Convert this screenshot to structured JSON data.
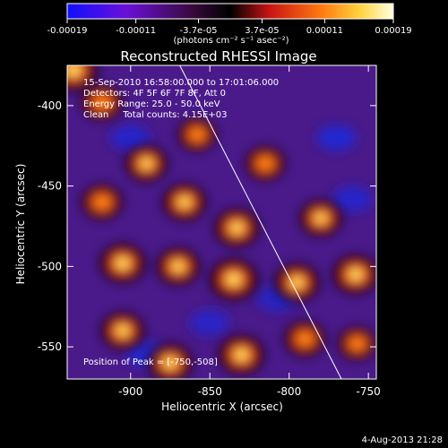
{
  "colorbar": {
    "tick_labels": [
      "-0.00019",
      "-0.00011",
      "-3.7e-05",
      "3.7e-05",
      "0.00011",
      "0.00019"
    ],
    "tick_values": [
      -0.00019,
      -0.00011,
      -3.7e-05,
      3.7e-05,
      0.00011,
      0.00019
    ],
    "range": [
      -0.00019,
      0.00019
    ],
    "unit_label": "(photons cm⁻² s⁻¹ asec⁻²)",
    "colormap": "violet-black-red-yellow-white"
  },
  "image": {
    "title": "Reconstructed RHESSI Image",
    "info_lines": [
      "15-Sep-2010 16:58:00.000 to 17:01:06.000",
      "Detectors: 4F 5F 6F 7F 8F, Att 0",
      "Energy Range: 25.0 - 50.0 keV",
      "Clean     Total counts: 4.15E+03"
    ],
    "peak_text": "Position of Peak = [-750,-508]",
    "footer_date": "4-Aug-2013 21:28"
  },
  "chart_data": {
    "type": "heatmap",
    "title": "Reconstructed RHESSI Image",
    "xlabel": "Heliocentric X (arcsec)",
    "ylabel": "Heliocentric Y (arcsec)",
    "xlim": [
      -940,
      -745
    ],
    "ylim": [
      -570,
      -375
    ],
    "x_ticks": [
      -900,
      -850,
      -800,
      -750
    ],
    "x_tick_labels": [
      "-900",
      "-850",
      "-800",
      "-750"
    ],
    "y_ticks": [
      -400,
      -450,
      -500,
      -550
    ],
    "y_tick_labels": [
      "-400",
      "-450",
      "-500",
      "-550"
    ],
    "limb_line": [
      [
        -869,
        -375
      ],
      [
        -767,
        -570
      ]
    ],
    "bright_sources": [
      {
        "x": -936,
        "y": -378,
        "intensity": 1.0
      },
      {
        "x": -918,
        "y": -398,
        "intensity": 0.7
      },
      {
        "x": -918,
        "y": -460,
        "intensity": 0.7
      },
      {
        "x": -890,
        "y": -436,
        "intensity": 0.75
      },
      {
        "x": -858,
        "y": -418,
        "intensity": 0.6
      },
      {
        "x": -866,
        "y": -460,
        "intensity": 0.8
      },
      {
        "x": -833,
        "y": -476,
        "intensity": 0.85
      },
      {
        "x": -815,
        "y": -436,
        "intensity": 0.65
      },
      {
        "x": -780,
        "y": -470,
        "intensity": 0.75
      },
      {
        "x": -905,
        "y": -498,
        "intensity": 0.9
      },
      {
        "x": -870,
        "y": -500,
        "intensity": 0.8
      },
      {
        "x": -835,
        "y": -508,
        "intensity": 1.0
      },
      {
        "x": -795,
        "y": -510,
        "intensity": 0.85
      },
      {
        "x": -758,
        "y": -505,
        "intensity": 0.9
      },
      {
        "x": -905,
        "y": -540,
        "intensity": 0.8
      },
      {
        "x": -875,
        "y": -560,
        "intensity": 0.85
      },
      {
        "x": -830,
        "y": -555,
        "intensity": 0.9
      },
      {
        "x": -790,
        "y": -545,
        "intensity": 0.7
      },
      {
        "x": -757,
        "y": -548,
        "intensity": 0.6
      }
    ],
    "dim_sources": [
      {
        "x": -900,
        "y": -420,
        "intensity": -0.7
      },
      {
        "x": -770,
        "y": -420,
        "intensity": -0.9
      },
      {
        "x": -760,
        "y": -458,
        "intensity": -0.7
      },
      {
        "x": -890,
        "y": -555,
        "intensity": -0.8
      },
      {
        "x": -850,
        "y": -535,
        "intensity": -0.6
      },
      {
        "x": -808,
        "y": -520,
        "intensity": -0.5
      }
    ]
  }
}
